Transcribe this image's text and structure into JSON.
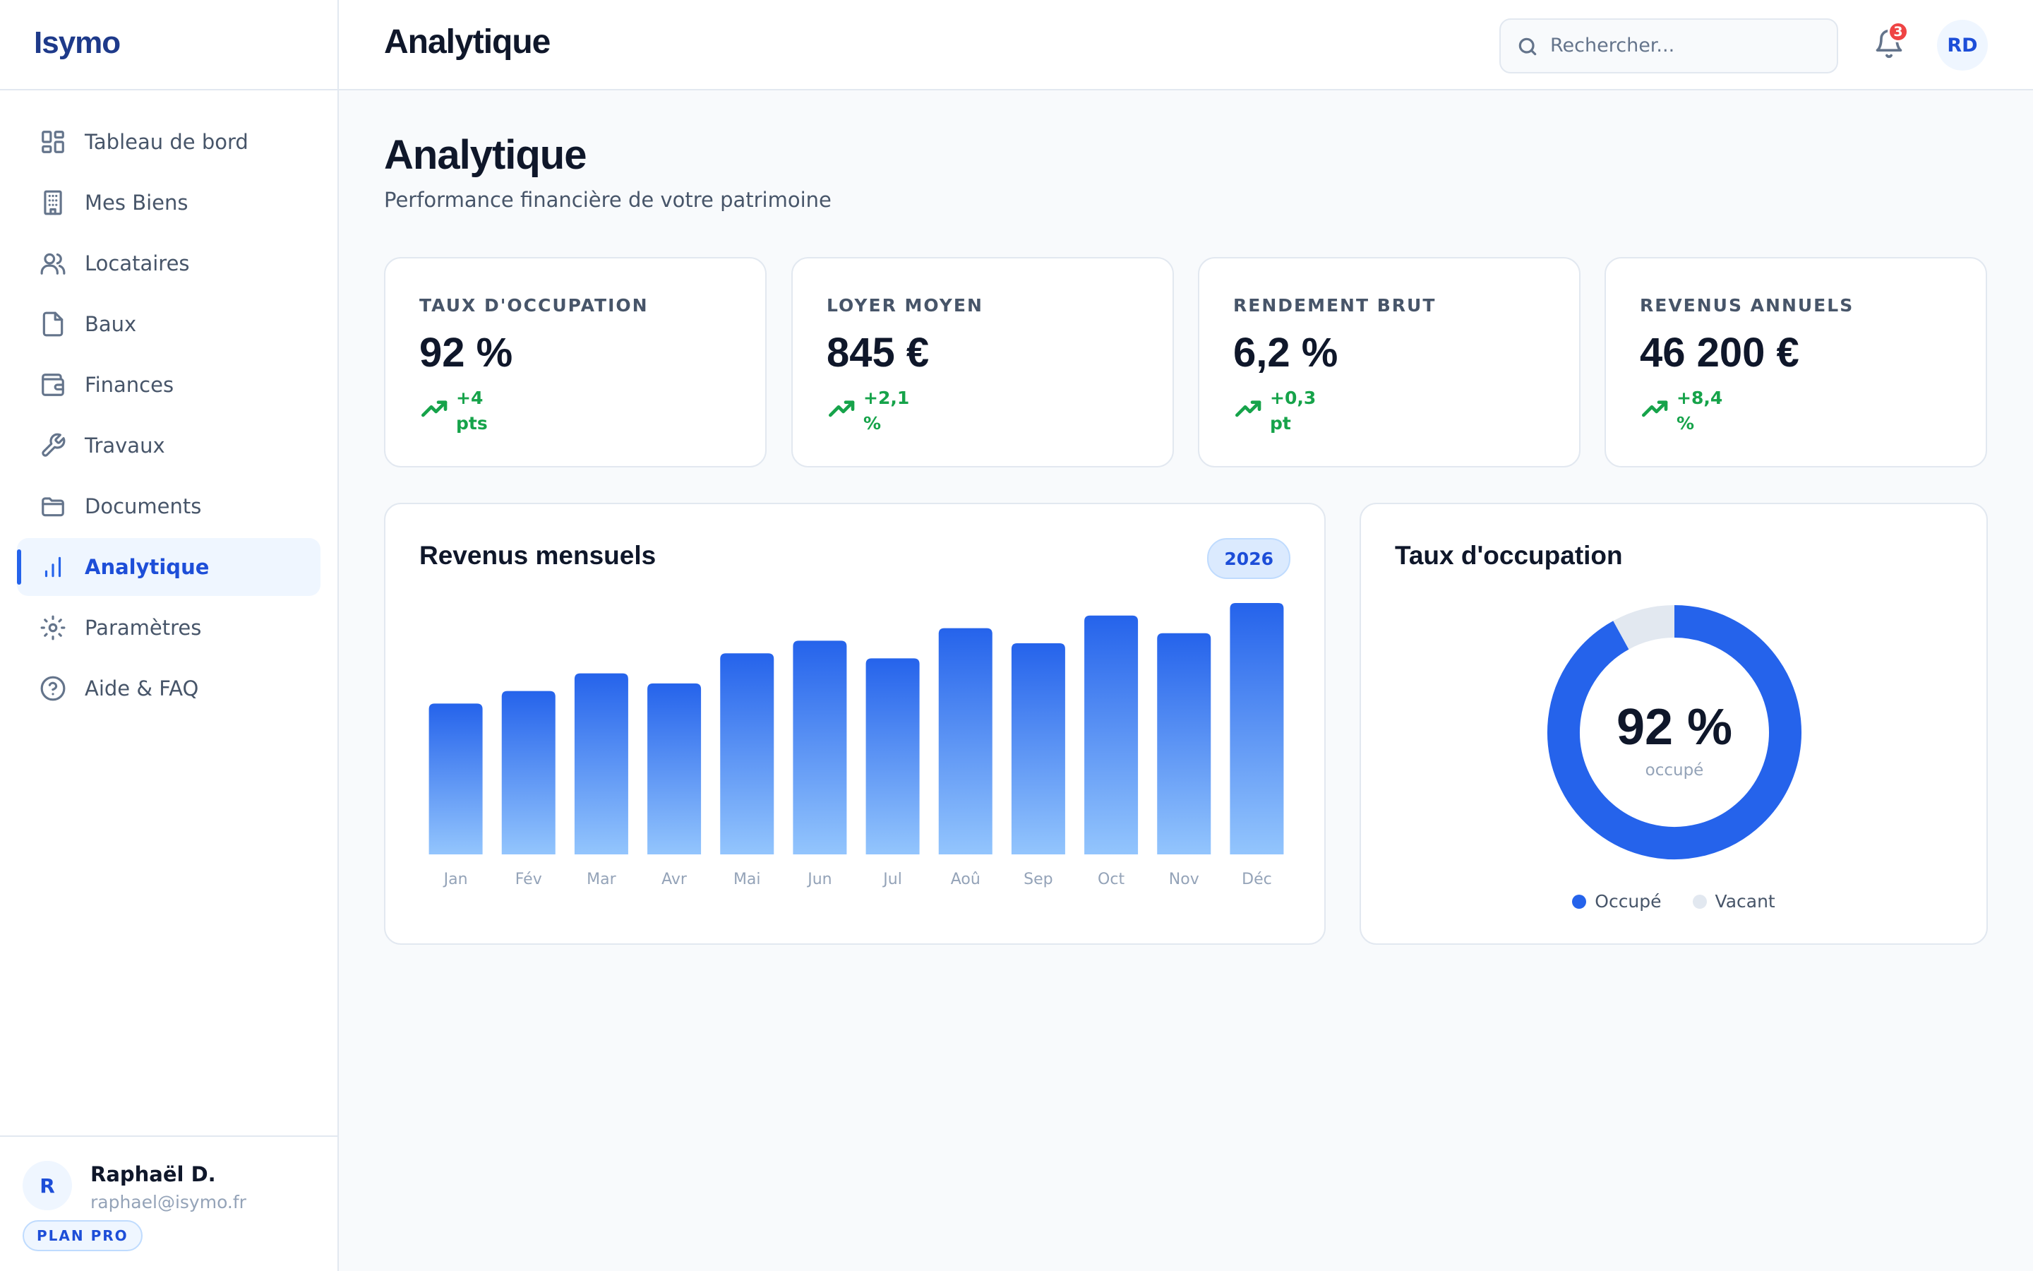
{
  "app": {
    "logo": "Isymo"
  },
  "sidebar": {
    "items": [
      {
        "label": "Tableau de bord",
        "icon": "dashboard-icon"
      },
      {
        "label": "Mes Biens",
        "icon": "building-icon"
      },
      {
        "label": "Locataires",
        "icon": "users-icon"
      },
      {
        "label": "Baux",
        "icon": "file-icon"
      },
      {
        "label": "Finances",
        "icon": "wallet-icon"
      },
      {
        "label": "Travaux",
        "icon": "wrench-icon"
      },
      {
        "label": "Documents",
        "icon": "folder-icon"
      },
      {
        "label": "Analytique",
        "icon": "bar-chart-icon",
        "active": true
      },
      {
        "label": "Paramètres",
        "icon": "gear-icon"
      },
      {
        "label": "Aide & FAQ",
        "icon": "help-icon"
      }
    ],
    "user": {
      "initial": "R",
      "name": "Raphaël D.",
      "email": "raphael@isymo.fr",
      "plan": "PLAN PRO"
    }
  },
  "header": {
    "title": "Analytique",
    "search_placeholder": "Rechercher...",
    "notification_count": "3",
    "avatar_initials": "RD"
  },
  "page": {
    "title": "Analytique",
    "subtitle": "Performance financière de votre patrimoine"
  },
  "kpis": [
    {
      "label": "TAUX D'OCCUPATION",
      "value": "92 %",
      "delta": "+4 pts"
    },
    {
      "label": "LOYER MOYEN",
      "value": "845 €",
      "delta": "+2,1 %"
    },
    {
      "label": "RENDEMENT BRUT",
      "value": "6,2 %",
      "delta": "+0,3 pt"
    },
    {
      "label": "REVENUS ANNUELS",
      "value": "46 200 €",
      "delta": "+8,4 %"
    }
  ],
  "revenue_card": {
    "title": "Revenus mensuels",
    "year": "2026"
  },
  "occupancy_card": {
    "title": "Taux d'occupation",
    "center_value": "92 %",
    "center_label": "occupé",
    "legend": [
      "Occupé",
      "Vacant"
    ]
  },
  "colors": {
    "accent": "#2563eb",
    "bar_top": "#2563eb",
    "bar_bottom": "#93c5fd",
    "vacant": "#e2e8f0",
    "positive": "#16a34a"
  },
  "chart_data": [
    {
      "type": "bar",
      "title": "Revenus mensuels",
      "categories": [
        "Jan",
        "Fév",
        "Mar",
        "Avr",
        "Mai",
        "Jun",
        "Jul",
        "Aoû",
        "Sep",
        "Oct",
        "Nov",
        "Déc"
      ],
      "values": [
        60,
        65,
        72,
        68,
        80,
        85,
        78,
        90,
        84,
        95,
        88,
        100
      ],
      "ylim": [
        0,
        100
      ],
      "grid": false
    },
    {
      "type": "pie",
      "title": "Taux d'occupation",
      "categories": [
        "Occupé",
        "Vacant"
      ],
      "values": [
        92,
        8
      ]
    }
  ]
}
